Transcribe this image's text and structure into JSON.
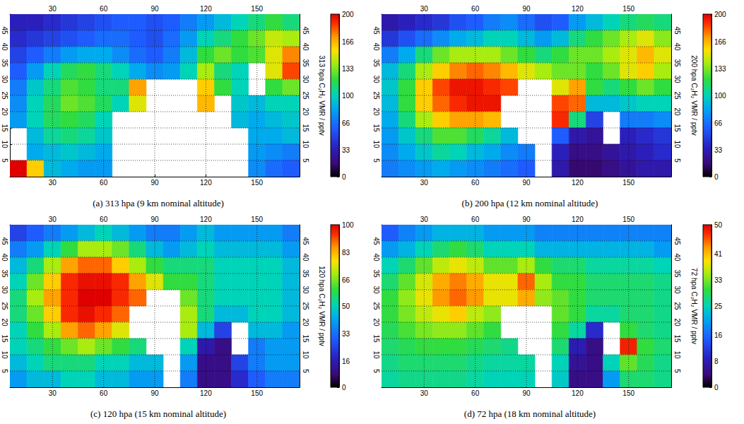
{
  "chart_data": [
    {
      "type": "heatmap",
      "title": "(a) 313 hpa (9 km nominal altitude)",
      "xlim": [
        5,
        175
      ],
      "xticks": [
        30,
        60,
        90,
        120,
        150
      ],
      "ylim": [
        0,
        50
      ],
      "yticks": [
        5,
        10,
        15,
        20,
        25,
        30,
        35,
        40,
        45
      ],
      "grid": true,
      "x_edges": [
        5,
        15,
        25,
        35,
        45,
        55,
        65,
        75,
        85,
        95,
        105,
        115,
        125,
        135,
        145,
        155,
        165,
        175
      ],
      "y_edges": [
        50,
        45,
        40,
        35,
        30,
        25,
        20,
        15,
        10,
        5,
        0
      ],
      "values": [
        [
          35,
          35,
          40,
          45,
          50,
          55,
          60,
          60,
          55,
          60,
          70,
          80,
          90,
          100,
          110,
          120,
          110
        ],
        [
          40,
          45,
          50,
          55,
          60,
          65,
          65,
          60,
          55,
          65,
          80,
          100,
          110,
          120,
          130,
          145,
          140
        ],
        [
          50,
          60,
          70,
          80,
          85,
          85,
          75,
          65,
          60,
          70,
          90,
          120,
          130,
          120,
          125,
          150,
          175
        ],
        [
          60,
          80,
          100,
          115,
          120,
          110,
          100,
          85,
          75,
          80,
          100,
          140,
          110,
          100,
          null,
          150,
          185
        ],
        [
          70,
          95,
          110,
          125,
          120,
          110,
          110,
          170,
          null,
          null,
          null,
          160,
          120,
          100,
          null,
          120,
          130
        ],
        [
          75,
          100,
          115,
          130,
          125,
          115,
          100,
          150,
          null,
          null,
          null,
          165,
          null,
          95,
          90,
          100,
          100
        ],
        [
          80,
          100,
          115,
          120,
          115,
          100,
          null,
          null,
          null,
          null,
          null,
          null,
          null,
          90,
          85,
          90,
          95
        ],
        [
          null,
          90,
          105,
          110,
          105,
          95,
          null,
          null,
          null,
          null,
          null,
          null,
          null,
          null,
          85,
          85,
          90
        ],
        [
          null,
          85,
          90,
          95,
          90,
          85,
          null,
          null,
          null,
          null,
          null,
          null,
          null,
          null,
          80,
          75,
          70
        ],
        [
          200,
          160,
          90,
          85,
          80,
          80,
          null,
          null,
          null,
          null,
          null,
          null,
          null,
          null,
          75,
          65,
          60
        ]
      ],
      "colorbar_label": "313 hpa C₂H₂ VMR / pptv",
      "colorbar_range": [
        0,
        200
      ],
      "colorbar_ticks": [
        0,
        33,
        66,
        100,
        133,
        166,
        200
      ]
    },
    {
      "type": "heatmap",
      "title": "(b) 200 hpa (12 km nominal altitude)",
      "xlim": [
        5,
        175
      ],
      "xticks": [
        30,
        60,
        90,
        120,
        150
      ],
      "ylim": [
        0,
        50
      ],
      "yticks": [
        5,
        10,
        15,
        20,
        25,
        30,
        35,
        40,
        45
      ],
      "grid": true,
      "x_edges": [
        5,
        15,
        25,
        35,
        45,
        55,
        65,
        75,
        85,
        95,
        105,
        115,
        125,
        135,
        145,
        155,
        165,
        175
      ],
      "y_edges": [
        50,
        45,
        40,
        35,
        30,
        25,
        20,
        15,
        10,
        5,
        0
      ],
      "values": [
        [
          30,
          35,
          40,
          45,
          55,
          60,
          70,
          75,
          65,
          55,
          60,
          80,
          90,
          100,
          110,
          115,
          110
        ],
        [
          45,
          55,
          65,
          75,
          85,
          90,
          100,
          100,
          90,
          80,
          90,
          110,
          120,
          130,
          140,
          150,
          135
        ],
        [
          70,
          85,
          110,
          130,
          140,
          140,
          140,
          130,
          120,
          110,
          120,
          130,
          130,
          140,
          150,
          165,
          150
        ],
        [
          90,
          110,
          140,
          160,
          175,
          180,
          175,
          165,
          150,
          140,
          130,
          130,
          120,
          130,
          150,
          160,
          140
        ],
        [
          95,
          120,
          160,
          185,
          195,
          195,
          190,
          185,
          null,
          null,
          150,
          170,
          120,
          110,
          120,
          130,
          120
        ],
        [
          90,
          120,
          160,
          180,
          190,
          195,
          195,
          null,
          null,
          null,
          185,
          180,
          90,
          90,
          95,
          100,
          100
        ],
        [
          85,
          110,
          140,
          160,
          170,
          170,
          165,
          null,
          null,
          null,
          190,
          110,
          50,
          null,
          70,
          70,
          75
        ],
        [
          80,
          95,
          110,
          125,
          125,
          115,
          105,
          90,
          null,
          null,
          60,
          30,
          25,
          null,
          35,
          40,
          45
        ],
        [
          75,
          85,
          95,
          105,
          100,
          90,
          85,
          75,
          70,
          null,
          35,
          20,
          20,
          25,
          30,
          35,
          40
        ],
        [
          70,
          75,
          80,
          85,
          80,
          75,
          70,
          65,
          60,
          null,
          30,
          15,
          15,
          20,
          25,
          30,
          30
        ]
      ],
      "colorbar_label": "200 hpa C₂H₂ VMR / pptv",
      "colorbar_range": [
        0,
        200
      ],
      "colorbar_ticks": [
        0,
        33,
        66,
        100,
        133,
        166,
        200
      ]
    },
    {
      "type": "heatmap",
      "title": "(c) 120 hpa (15 km nominal altitude)",
      "xlim": [
        5,
        175
      ],
      "xticks": [
        30,
        60,
        90,
        120,
        150
      ],
      "ylim": [
        0,
        50
      ],
      "yticks": [
        5,
        10,
        15,
        20,
        25,
        30,
        35,
        40,
        45
      ],
      "grid": true,
      "x_edges": [
        5,
        15,
        25,
        35,
        45,
        55,
        65,
        75,
        85,
        95,
        105,
        115,
        125,
        135,
        145,
        155,
        165,
        175
      ],
      "y_edges": [
        50,
        45,
        40,
        35,
        30,
        25,
        20,
        15,
        10,
        5,
        0
      ],
      "values": [
        [
          25,
          30,
          35,
          40,
          45,
          50,
          45,
          40,
          35,
          35,
          40,
          45,
          40,
          40,
          40,
          40,
          35
        ],
        [
          35,
          40,
          50,
          60,
          70,
          70,
          65,
          55,
          45,
          40,
          45,
          50,
          45,
          45,
          45,
          45,
          40
        ],
        [
          45,
          55,
          70,
          85,
          90,
          90,
          80,
          70,
          60,
          55,
          55,
          55,
          50,
          50,
          50,
          50,
          45
        ],
        [
          50,
          65,
          80,
          95,
          98,
          98,
          95,
          85,
          75,
          60,
          60,
          55,
          50,
          50,
          50,
          50,
          45
        ],
        [
          55,
          70,
          85,
          95,
          100,
          100,
          95,
          90,
          null,
          null,
          65,
          55,
          50,
          50,
          50,
          50,
          45
        ],
        [
          55,
          65,
          80,
          95,
          98,
          95,
          90,
          null,
          null,
          null,
          70,
          55,
          45,
          45,
          50,
          50,
          45
        ],
        [
          50,
          60,
          70,
          85,
          90,
          85,
          75,
          null,
          null,
          null,
          70,
          45,
          25,
          null,
          45,
          45,
          40
        ],
        [
          50,
          55,
          60,
          65,
          70,
          65,
          60,
          55,
          null,
          null,
          50,
          15,
          10,
          null,
          35,
          40,
          40
        ],
        [
          45,
          50,
          55,
          55,
          55,
          50,
          50,
          45,
          45,
          null,
          40,
          10,
          10,
          25,
          35,
          40,
          40
        ],
        [
          40,
          45,
          45,
          50,
          50,
          45,
          45,
          40,
          40,
          null,
          35,
          10,
          10,
          20,
          30,
          35,
          35
        ]
      ],
      "colorbar_label": "120 hpa C₂H₂ VMR / pptv",
      "colorbar_range": [
        0,
        100
      ],
      "colorbar_ticks": [
        0,
        16,
        33,
        50,
        66,
        83,
        100
      ]
    },
    {
      "type": "heatmap",
      "title": "(d) 72 hpa (18 km nominal altitude)",
      "xlim": [
        5,
        175
      ],
      "xticks": [
        30,
        60,
        90,
        120,
        150
      ],
      "ylim": [
        0,
        50
      ],
      "yticks": [
        5,
        10,
        15,
        20,
        25,
        30,
        35,
        40,
        45
      ],
      "grid": true,
      "x_edges": [
        5,
        15,
        25,
        35,
        45,
        55,
        65,
        75,
        85,
        95,
        105,
        115,
        125,
        135,
        145,
        155,
        165,
        175
      ],
      "y_edges": [
        50,
        45,
        40,
        35,
        30,
        25,
        20,
        15,
        10,
        5,
        0
      ],
      "values": [
        [
          15,
          18,
          20,
          22,
          22,
          22,
          20,
          20,
          20,
          18,
          18,
          18,
          18,
          18,
          18,
          18,
          18
        ],
        [
          20,
          22,
          25,
          28,
          30,
          28,
          25,
          25,
          25,
          22,
          22,
          22,
          22,
          22,
          22,
          22,
          20
        ],
        [
          25,
          28,
          32,
          36,
          38,
          36,
          32,
          32,
          35,
          30,
          28,
          28,
          26,
          26,
          26,
          26,
          25
        ],
        [
          28,
          32,
          37,
          42,
          44,
          42,
          38,
          38,
          45,
          35,
          30,
          30,
          28,
          28,
          28,
          28,
          27
        ],
        [
          30,
          34,
          38,
          43,
          45,
          43,
          38,
          38,
          42,
          34,
          32,
          30,
          28,
          28,
          28,
          28,
          27
        ],
        [
          30,
          33,
          36,
          38,
          40,
          36,
          34,
          null,
          null,
          null,
          32,
          30,
          26,
          26,
          28,
          28,
          27
        ],
        [
          29,
          31,
          33,
          34,
          34,
          32,
          30,
          null,
          null,
          null,
          30,
          26,
          10,
          null,
          30,
          28,
          27
        ],
        [
          28,
          29,
          30,
          30,
          30,
          29,
          28,
          27,
          null,
          null,
          28,
          8,
          5,
          null,
          48,
          30,
          28
        ],
        [
          27,
          28,
          28,
          28,
          28,
          27,
          26,
          26,
          26,
          null,
          25,
          6,
          5,
          25,
          32,
          29,
          27
        ],
        [
          26,
          27,
          27,
          27,
          27,
          26,
          25,
          25,
          25,
          null,
          24,
          5,
          5,
          20,
          28,
          28,
          27
        ]
      ],
      "colorbar_label": "72 hpa C₂H₂ VMR / pptv",
      "colorbar_range": [
        0,
        50
      ],
      "colorbar_ticks": [
        0,
        8,
        16,
        25,
        33,
        41,
        50
      ]
    }
  ]
}
